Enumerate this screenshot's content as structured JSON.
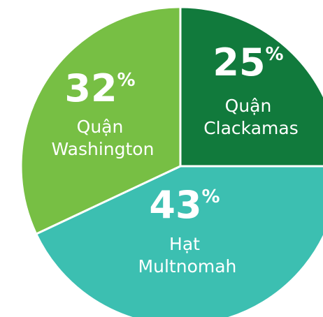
{
  "chart_data": {
    "type": "pie",
    "categories": [
      "Quận Clackamas",
      "Hạt Multnomah",
      "Quận Washington"
    ],
    "values": [
      25,
      43,
      32
    ],
    "value_labels": [
      "25%",
      "43%",
      "32%"
    ],
    "colors": [
      "#117a3c",
      "#3cbfb1",
      "#77bf44"
    ]
  }
}
